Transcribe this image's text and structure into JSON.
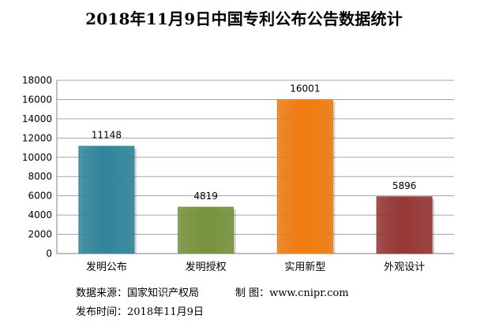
{
  "chart_data": {
    "type": "bar",
    "title": "2018年11月9日中国专利公布公告数据统计",
    "categories": [
      "发明公布",
      "发明授权",
      "实用新型",
      "外观设计"
    ],
    "values": [
      11148,
      4819,
      16001,
      5896
    ],
    "data_labels": [
      "11148",
      "4819",
      "16001",
      "5896"
    ],
    "ylim": [
      0,
      18000
    ],
    "yticks": [
      0,
      2000,
      4000,
      6000,
      8000,
      10000,
      12000,
      14000,
      16000,
      18000
    ],
    "grid": true,
    "legend": "none",
    "bar_colors": [
      "#31859C",
      "#77933C",
      "#F07B10",
      "#953735"
    ]
  },
  "footer": {
    "source": "数据来源：国家知识产权局",
    "credit": "制 图：www.cnipr.com",
    "date": "发布时间：2018年11月9日"
  }
}
